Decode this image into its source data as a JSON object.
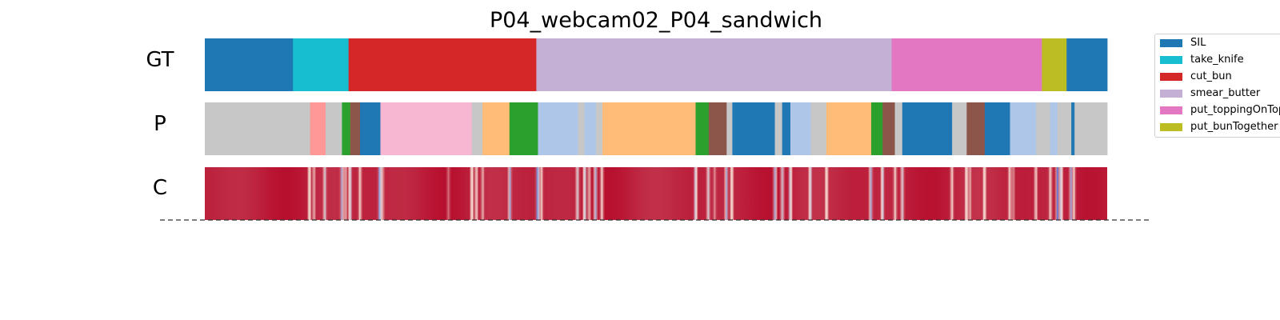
{
  "chart_data": {
    "type": "table",
    "title": "P04_webcam02_P04_sandwich",
    "rows": [
      "GT",
      "P",
      "C"
    ],
    "x_range": [
      0,
      1
    ],
    "legend": {
      "placement": "top-right",
      "entries": [
        {
          "name": "SIL",
          "color": "#1f77b4"
        },
        {
          "name": "take_knife",
          "color": "#17becf"
        },
        {
          "name": "cut_bun",
          "color": "#d62728"
        },
        {
          "name": "smear_butter",
          "color": "#c5b0d5"
        },
        {
          "name": "put_toppingOnTop",
          "color": "#e377c2"
        },
        {
          "name": "put_bunTogether",
          "color": "#bcbd22"
        }
      ]
    },
    "gt_segments": [
      {
        "start": 0.0,
        "end": 0.0977,
        "color": "#1f77b4"
      },
      {
        "start": 0.0977,
        "end": 0.1593,
        "color": "#17becf"
      },
      {
        "start": 0.1593,
        "end": 0.3674,
        "color": "#d62728"
      },
      {
        "start": 0.3674,
        "end": 0.7611,
        "color": "#c5b0d5"
      },
      {
        "start": 0.7611,
        "end": 0.9276,
        "color": "#e377c2"
      },
      {
        "start": 0.9276,
        "end": 0.955,
        "color": "#bcbd22"
      },
      {
        "start": 0.955,
        "end": 1.0,
        "color": "#1f77b4"
      }
    ],
    "p_segments": [
      {
        "start": 0.0,
        "end": 0.1167,
        "color": "#c7c7c7"
      },
      {
        "start": 0.1167,
        "end": 0.1339,
        "color": "#ff9896"
      },
      {
        "start": 0.1339,
        "end": 0.152,
        "color": "#c7c7c7"
      },
      {
        "start": 0.152,
        "end": 0.1611,
        "color": "#2ca02c"
      },
      {
        "start": 0.1611,
        "end": 0.172,
        "color": "#8c564b"
      },
      {
        "start": 0.172,
        "end": 0.1946,
        "color": "#1f77b4"
      },
      {
        "start": 0.1946,
        "end": 0.2959,
        "color": "#f7b6d2"
      },
      {
        "start": 0.2959,
        "end": 0.3077,
        "color": "#c7c7c7"
      },
      {
        "start": 0.3077,
        "end": 0.3376,
        "color": "#ffbb78"
      },
      {
        "start": 0.3376,
        "end": 0.3692,
        "color": "#2ca02c"
      },
      {
        "start": 0.3692,
        "end": 0.4136,
        "color": "#aec7e8"
      },
      {
        "start": 0.4136,
        "end": 0.4208,
        "color": "#c7c7c7"
      },
      {
        "start": 0.4208,
        "end": 0.4335,
        "color": "#aec7e8"
      },
      {
        "start": 0.4335,
        "end": 0.4407,
        "color": "#c7c7c7"
      },
      {
        "start": 0.4407,
        "end": 0.5439,
        "color": "#ffbb78"
      },
      {
        "start": 0.5439,
        "end": 0.5584,
        "color": "#2ca02c"
      },
      {
        "start": 0.5584,
        "end": 0.5783,
        "color": "#8c564b"
      },
      {
        "start": 0.5783,
        "end": 0.5846,
        "color": "#c7c7c7"
      },
      {
        "start": 0.5846,
        "end": 0.6317,
        "color": "#1f77b4"
      },
      {
        "start": 0.6317,
        "end": 0.6398,
        "color": "#c7c7c7"
      },
      {
        "start": 0.6398,
        "end": 0.6489,
        "color": "#1f77b4"
      },
      {
        "start": 0.6489,
        "end": 0.6715,
        "color": "#aec7e8"
      },
      {
        "start": 0.6715,
        "end": 0.6887,
        "color": "#c7c7c7"
      },
      {
        "start": 0.6887,
        "end": 0.7385,
        "color": "#ffbb78"
      },
      {
        "start": 0.7385,
        "end": 0.7511,
        "color": "#2ca02c"
      },
      {
        "start": 0.7511,
        "end": 0.7647,
        "color": "#8c564b"
      },
      {
        "start": 0.7647,
        "end": 0.7729,
        "color": "#c7c7c7"
      },
      {
        "start": 0.7729,
        "end": 0.8281,
        "color": "#1f77b4"
      },
      {
        "start": 0.8281,
        "end": 0.8443,
        "color": "#c7c7c7"
      },
      {
        "start": 0.8443,
        "end": 0.8643,
        "color": "#8c564b"
      },
      {
        "start": 0.8643,
        "end": 0.8923,
        "color": "#1f77b4"
      },
      {
        "start": 0.8923,
        "end": 0.9213,
        "color": "#aec7e8"
      },
      {
        "start": 0.9213,
        "end": 0.9367,
        "color": "#c7c7c7"
      },
      {
        "start": 0.9367,
        "end": 0.9448,
        "color": "#aec7e8"
      },
      {
        "start": 0.9448,
        "end": 0.9602,
        "color": "#c7c7c7"
      },
      {
        "start": 0.9602,
        "end": 0.9638,
        "color": "#1f77b4"
      },
      {
        "start": 0.9638,
        "end": 1.0,
        "color": "#c7c7c7"
      }
    ],
    "c_dips": [
      {
        "pos": 0.116,
        "depth": 0.7
      },
      {
        "pos": 0.121,
        "depth": 0.5
      },
      {
        "pos": 0.133,
        "depth": 0.7
      },
      {
        "pos": 0.152,
        "depth": 0.8
      },
      {
        "pos": 0.156,
        "depth": 0.5
      },
      {
        "pos": 0.161,
        "depth": 0.8
      },
      {
        "pos": 0.172,
        "depth": 0.6
      },
      {
        "pos": 0.194,
        "depth": 0.95
      },
      {
        "pos": 0.197,
        "depth": 0.5
      },
      {
        "pos": 0.27,
        "depth": 0.3
      },
      {
        "pos": 0.296,
        "depth": 0.7
      },
      {
        "pos": 0.301,
        "depth": 0.6
      },
      {
        "pos": 0.308,
        "depth": 0.5
      },
      {
        "pos": 0.338,
        "depth": 0.8
      },
      {
        "pos": 0.369,
        "depth": 1.0
      },
      {
        "pos": 0.373,
        "depth": 0.6
      },
      {
        "pos": 0.413,
        "depth": 0.7
      },
      {
        "pos": 0.421,
        "depth": 0.8
      },
      {
        "pos": 0.426,
        "depth": 0.5
      },
      {
        "pos": 0.433,
        "depth": 0.8
      },
      {
        "pos": 0.44,
        "depth": 0.6
      },
      {
        "pos": 0.544,
        "depth": 0.8
      },
      {
        "pos": 0.558,
        "depth": 0.7
      },
      {
        "pos": 0.565,
        "depth": 0.4
      },
      {
        "pos": 0.578,
        "depth": 0.8
      },
      {
        "pos": 0.584,
        "depth": 0.7
      },
      {
        "pos": 0.632,
        "depth": 0.8
      },
      {
        "pos": 0.64,
        "depth": 0.7
      },
      {
        "pos": 0.649,
        "depth": 0.8
      },
      {
        "pos": 0.671,
        "depth": 0.8
      },
      {
        "pos": 0.689,
        "depth": 0.7
      },
      {
        "pos": 0.738,
        "depth": 0.8
      },
      {
        "pos": 0.751,
        "depth": 0.8
      },
      {
        "pos": 0.765,
        "depth": 0.6
      },
      {
        "pos": 0.773,
        "depth": 0.7
      },
      {
        "pos": 0.828,
        "depth": 0.6
      },
      {
        "pos": 0.844,
        "depth": 0.7
      },
      {
        "pos": 0.848,
        "depth": 0.5
      },
      {
        "pos": 0.864,
        "depth": 0.7
      },
      {
        "pos": 0.892,
        "depth": 0.6
      },
      {
        "pos": 0.896,
        "depth": 0.4
      },
      {
        "pos": 0.921,
        "depth": 0.6
      },
      {
        "pos": 0.937,
        "depth": 0.6
      },
      {
        "pos": 0.945,
        "depth": 0.95
      },
      {
        "pos": 0.949,
        "depth": 0.8
      },
      {
        "pos": 0.96,
        "depth": 0.8
      },
      {
        "pos": 0.963,
        "depth": 0.6
      }
    ]
  }
}
